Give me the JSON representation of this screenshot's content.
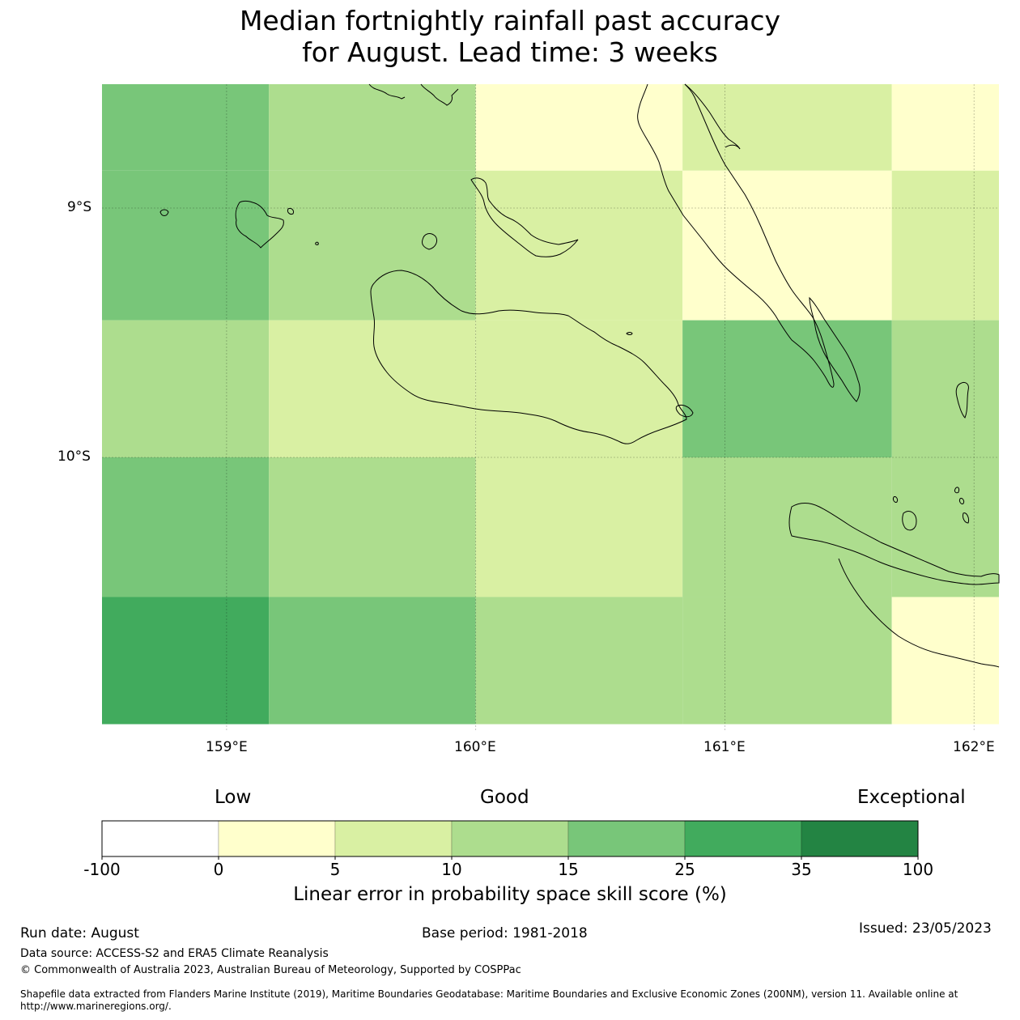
{
  "title": {
    "line1": "Median fortnightly rainfall past accuracy",
    "line2": "for August. Lead time: 3 weeks"
  },
  "map": {
    "lat_labels": [
      "9°S",
      "10°S"
    ],
    "lon_labels": [
      "159°E",
      "160°E",
      "161°E",
      "162°E"
    ],
    "extent": {
      "lon": [
        158.5,
        162.1
      ],
      "lat": [
        -11.07,
        -8.47
      ]
    },
    "rows": [
      {
        "lat": [
          -8.85,
          -8.47
        ],
        "cells": [
          {
            "lon": [
              158.5,
              159.17
            ],
            "class": 4
          },
          {
            "lon": [
              159.17,
              160.0
            ],
            "class": 3
          },
          {
            "lon": [
              160.0,
              160.83
            ],
            "class": 1
          },
          {
            "lon": [
              160.83,
              161.67
            ],
            "class": 2
          },
          {
            "lon": [
              161.67,
              162.1
            ],
            "class": 1
          }
        ]
      },
      {
        "lat": [
          -9.45,
          -8.85
        ],
        "cells": [
          {
            "lon": [
              158.5,
              159.17
            ],
            "class": 4
          },
          {
            "lon": [
              159.17,
              160.0
            ],
            "class": 3
          },
          {
            "lon": [
              160.0,
              160.83
            ],
            "class": 2
          },
          {
            "lon": [
              160.83,
              161.67
            ],
            "class": 1
          },
          {
            "lon": [
              161.67,
              162.1
            ],
            "class": 2
          }
        ]
      },
      {
        "lat": [
          -10.0,
          -9.45
        ],
        "cells": [
          {
            "lon": [
              158.5,
              159.17
            ],
            "class": 3
          },
          {
            "lon": [
              159.17,
              160.0
            ],
            "class": 2
          },
          {
            "lon": [
              160.0,
              160.83
            ],
            "class": 2
          },
          {
            "lon": [
              160.83,
              161.67
            ],
            "class": 4
          },
          {
            "lon": [
              161.67,
              162.1
            ],
            "class": 3
          }
        ]
      },
      {
        "lat": [
          -10.56,
          -10.0
        ],
        "cells": [
          {
            "lon": [
              158.5,
              159.17
            ],
            "class": 4
          },
          {
            "lon": [
              159.17,
              160.0
            ],
            "class": 3
          },
          {
            "lon": [
              160.0,
              160.83
            ],
            "class": 2
          },
          {
            "lon": [
              160.83,
              161.67
            ],
            "class": 3
          },
          {
            "lon": [
              161.67,
              162.1
            ],
            "class": 3
          }
        ]
      },
      {
        "lat": [
          -11.07,
          -10.56
        ],
        "cells": [
          {
            "lon": [
              158.5,
              159.17
            ],
            "class": 5
          },
          {
            "lon": [
              159.17,
              160.0
            ],
            "class": 4
          },
          {
            "lon": [
              160.0,
              160.83
            ],
            "class": 3
          },
          {
            "lon": [
              160.83,
              161.67
            ],
            "class": 3
          },
          {
            "lon": [
              161.67,
              162.1
            ],
            "class": 1
          }
        ]
      }
    ]
  },
  "colorbar": {
    "categories": {
      "low": "Low",
      "good": "Good",
      "exceptional": "Exceptional"
    },
    "labels": [
      "-100",
      "0",
      "5",
      "10",
      "15",
      "25",
      "35",
      "100"
    ],
    "colors": [
      "#ffffff",
      "#ffffcc",
      "#d9f0a3",
      "#addd8e",
      "#78c679",
      "#41ab5d",
      "#238443"
    ],
    "title": "Linear error in probability space skill score (%)"
  },
  "footer": {
    "run_date": "Run date: August",
    "base_period": "Base period: 1981-2018",
    "issued": "Issued: 23/05/2023",
    "data_source": "Data source: ACCESS-S2 and ERA5 Climate Reanalysis",
    "copyright": "© Commonwealth of Australia 2023, Australian Bureau of Meteorology, Supported by COSPPac",
    "shapefile_line1": "Shapefile data extracted from Flanders Marine Institute (2019), Maritime Boundaries Geodatabase: Maritime Boundaries and Exclusive Economic Zones (200NM), version 11. Available online at",
    "shapefile_line2": "http://www.marineregions.org/."
  }
}
